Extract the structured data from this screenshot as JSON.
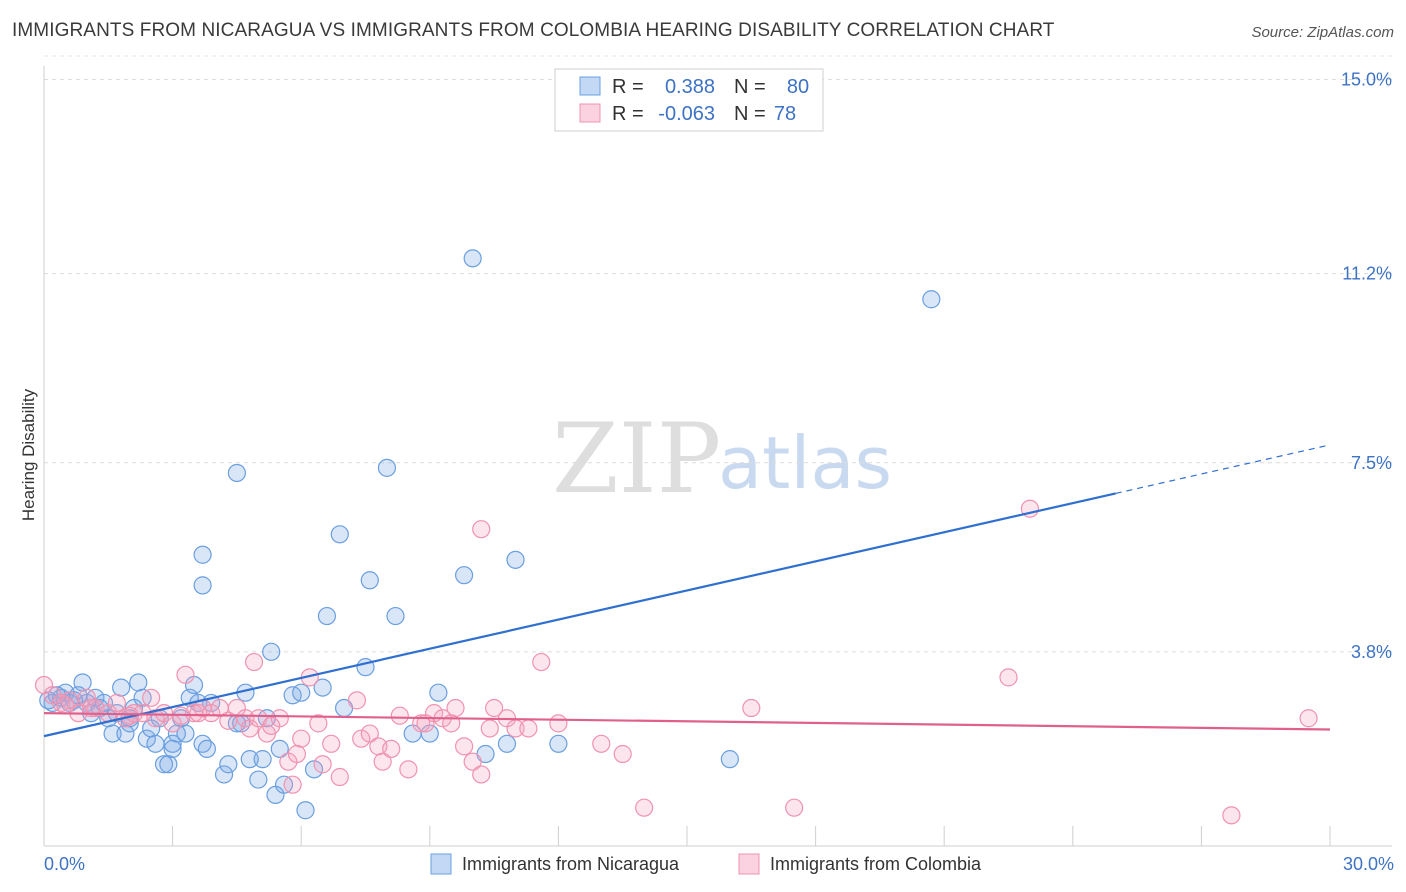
{
  "title": "IMMIGRANTS FROM NICARAGUA VS IMMIGRANTS FROM COLOMBIA HEARING DISABILITY CORRELATION CHART",
  "source": "Source: ZipAtlas.com",
  "watermark": {
    "zip": "ZIP",
    "atlas": "atlas"
  },
  "legend": {
    "r_label": "R =",
    "n_label": "N =",
    "rows": [
      {
        "r": "0.388",
        "n": "80",
        "color": "#6a9fe0"
      },
      {
        "r": "-0.063",
        "n": "78",
        "color": "#f093b0"
      }
    ]
  },
  "chart_data": {
    "type": "scatter",
    "title": "IMMIGRANTS FROM NICARAGUA VS IMMIGRANTS FROM COLOMBIA HEARING DISABILITY CORRELATION CHART",
    "xlabel": "",
    "ylabel": "Hearing Disability",
    "xlim": [
      0,
      30
    ],
    "ylim": [
      0,
      15.5
    ],
    "x_tick_labels": [
      "0.0%",
      "30.0%"
    ],
    "y_ticks": [
      3.8,
      7.5,
      11.2,
      15.0
    ],
    "y_tick_labels": [
      "3.8%",
      "7.5%",
      "11.2%",
      "15.0%"
    ],
    "grid": "horizontal dashed",
    "legend_placement": "top-center",
    "series": [
      {
        "name": "Immigrants from Nicaragua",
        "color": "#6a9fe0",
        "line_color": "#2f6fd0",
        "trend": {
          "x0": 0,
          "y0": 2.15,
          "x1": 25.0,
          "y1": 6.9,
          "dash_to_x": 30,
          "dash_to_y": 7.85
        },
        "points": [
          [
            0.2,
            2.8
          ],
          [
            0.4,
            2.9
          ],
          [
            0.5,
            3.0
          ],
          [
            0.6,
            2.8
          ],
          [
            0.8,
            2.95
          ],
          [
            0.9,
            3.2
          ],
          [
            1.0,
            2.8
          ],
          [
            1.1,
            2.6
          ],
          [
            1.2,
            2.9
          ],
          [
            1.3,
            2.7
          ],
          [
            1.5,
            2.5
          ],
          [
            1.6,
            2.2
          ],
          [
            1.7,
            2.6
          ],
          [
            1.8,
            3.1
          ],
          [
            1.9,
            2.2
          ],
          [
            2.0,
            2.5
          ],
          [
            2.1,
            2.7
          ],
          [
            2.2,
            3.2
          ],
          [
            2.3,
            2.9
          ],
          [
            2.4,
            2.1
          ],
          [
            2.5,
            2.3
          ],
          [
            2.6,
            2.0
          ],
          [
            2.7,
            2.5
          ],
          [
            2.8,
            1.6
          ],
          [
            2.9,
            1.6
          ],
          [
            3.0,
            1.9
          ],
          [
            3.1,
            2.2
          ],
          [
            3.2,
            2.5
          ],
          [
            3.3,
            2.2
          ],
          [
            3.4,
            2.9
          ],
          [
            3.5,
            3.15
          ],
          [
            3.6,
            2.8
          ],
          [
            3.7,
            2.0
          ],
          [
            3.8,
            1.9
          ],
          [
            3.9,
            2.8
          ],
          [
            4.2,
            1.4
          ],
          [
            4.3,
            1.6
          ],
          [
            4.5,
            2.4
          ],
          [
            4.6,
            2.4
          ],
          [
            4.7,
            3.0
          ],
          [
            4.8,
            1.7
          ],
          [
            5.0,
            1.3
          ],
          [
            5.1,
            1.7
          ],
          [
            5.2,
            2.5
          ],
          [
            5.3,
            3.8
          ],
          [
            5.4,
            1.0
          ],
          [
            5.5,
            1.9
          ],
          [
            5.6,
            1.2
          ],
          [
            5.8,
            2.95
          ],
          [
            6.0,
            3.0
          ],
          [
            6.1,
            0.7
          ],
          [
            6.3,
            1.5
          ],
          [
            6.5,
            3.1
          ],
          [
            6.6,
            4.5
          ],
          [
            7.0,
            2.7
          ],
          [
            7.5,
            3.5
          ],
          [
            6.9,
            6.1
          ],
          [
            7.6,
            5.2
          ],
          [
            8.0,
            7.4
          ],
          [
            8.2,
            4.5
          ],
          [
            8.6,
            2.2
          ],
          [
            9.0,
            2.2
          ],
          [
            9.2,
            3.0
          ],
          [
            9.8,
            5.3
          ],
          [
            10.0,
            11.5
          ],
          [
            10.3,
            1.8
          ],
          [
            10.8,
            2.0
          ],
          [
            11.0,
            5.6
          ],
          [
            3.7,
            5.7
          ],
          [
            3.7,
            5.1
          ],
          [
            4.5,
            7.3
          ],
          [
            12.0,
            2.0
          ],
          [
            16.0,
            1.7
          ],
          [
            20.7,
            10.7
          ],
          [
            0.1,
            2.85
          ],
          [
            0.3,
            2.95
          ],
          [
            0.7,
            2.85
          ],
          [
            1.4,
            2.8
          ],
          [
            2.0,
            2.4
          ],
          [
            3.0,
            2.0
          ]
        ]
      },
      {
        "name": "Immigrants from Colombia",
        "color": "#f093b0",
        "line_color": "#e0608d",
        "trend": {
          "x0": 0,
          "y0": 2.6,
          "x1": 30,
          "y1": 2.28
        },
        "points": [
          [
            0.0,
            3.15
          ],
          [
            0.2,
            2.95
          ],
          [
            0.4,
            2.8
          ],
          [
            0.6,
            2.85
          ],
          [
            0.8,
            2.6
          ],
          [
            1.0,
            2.9
          ],
          [
            1.2,
            2.7
          ],
          [
            1.5,
            2.6
          ],
          [
            1.7,
            2.8
          ],
          [
            1.9,
            2.5
          ],
          [
            2.1,
            2.6
          ],
          [
            2.3,
            2.6
          ],
          [
            2.5,
            2.9
          ],
          [
            2.6,
            2.5
          ],
          [
            2.8,
            2.6
          ],
          [
            3.0,
            2.4
          ],
          [
            3.2,
            2.55
          ],
          [
            3.3,
            3.35
          ],
          [
            3.5,
            2.6
          ],
          [
            3.7,
            2.7
          ],
          [
            3.9,
            2.6
          ],
          [
            4.1,
            2.7
          ],
          [
            4.3,
            2.45
          ],
          [
            4.5,
            2.7
          ],
          [
            4.7,
            2.5
          ],
          [
            4.8,
            2.3
          ],
          [
            4.9,
            3.6
          ],
          [
            5.0,
            2.5
          ],
          [
            5.2,
            2.2
          ],
          [
            5.3,
            2.35
          ],
          [
            5.5,
            2.5
          ],
          [
            5.7,
            1.65
          ],
          [
            5.8,
            1.2
          ],
          [
            6.0,
            2.1
          ],
          [
            6.2,
            3.3
          ],
          [
            6.4,
            2.4
          ],
          [
            6.5,
            1.6
          ],
          [
            6.7,
            2.0
          ],
          [
            6.9,
            1.35
          ],
          [
            7.3,
            2.85
          ],
          [
            7.4,
            2.1
          ],
          [
            7.6,
            2.2
          ],
          [
            7.8,
            1.95
          ],
          [
            7.9,
            1.65
          ],
          [
            8.1,
            1.9
          ],
          [
            8.3,
            2.55
          ],
          [
            8.5,
            1.5
          ],
          [
            8.8,
            2.4
          ],
          [
            8.9,
            2.4
          ],
          [
            9.1,
            2.6
          ],
          [
            9.3,
            2.5
          ],
          [
            9.5,
            2.4
          ],
          [
            9.6,
            2.7
          ],
          [
            9.8,
            1.95
          ],
          [
            10.0,
            1.65
          ],
          [
            10.2,
            1.4
          ],
          [
            10.4,
            2.3
          ],
          [
            10.5,
            2.7
          ],
          [
            10.8,
            2.5
          ],
          [
            11.0,
            2.3
          ],
          [
            11.3,
            2.3
          ],
          [
            11.6,
            3.6
          ],
          [
            12.0,
            2.4
          ],
          [
            13.0,
            2.0
          ],
          [
            13.5,
            1.8
          ],
          [
            14.0,
            0.75
          ],
          [
            16.5,
            2.7
          ],
          [
            17.5,
            0.75
          ],
          [
            22.5,
            3.3
          ],
          [
            23.0,
            6.6
          ],
          [
            10.2,
            6.2
          ],
          [
            27.7,
            0.6
          ],
          [
            29.5,
            2.5
          ],
          [
            0.5,
            2.75
          ],
          [
            1.1,
            2.7
          ],
          [
            2.0,
            2.55
          ],
          [
            3.6,
            2.6
          ],
          [
            5.9,
            1.8
          ]
        ]
      }
    ]
  }
}
